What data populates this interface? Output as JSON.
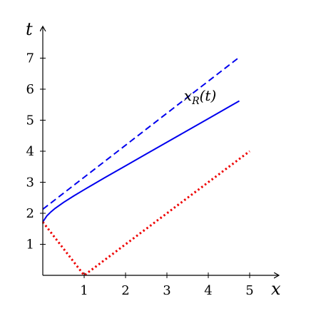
{
  "chart_data": {
    "type": "line",
    "title": "",
    "xlabel": "x",
    "ylabel": "t",
    "xlim": [
      0,
      5.5
    ],
    "ylim": [
      0,
      7.8
    ],
    "grid": false,
    "x_ticks": [
      "1",
      "2",
      "3",
      "4",
      "5"
    ],
    "y_ticks": [
      "1",
      "2",
      "3",
      "4",
      "5",
      "6",
      "7"
    ],
    "annotation": {
      "main": "x",
      "sub": "R",
      "arg": "(t)",
      "at": [
        4.1,
        5.75
      ]
    },
    "series": [
      {
        "style": "solid",
        "color": "#0000ee",
        "x": [
          0,
          0.1,
          0.2,
          0.3,
          0.5,
          0.75,
          1.0,
          1.5,
          2.0,
          2.5,
          3.0,
          3.5,
          4.0,
          4.5,
          4.75
        ],
        "y": [
          1.72,
          1.92,
          2.05,
          2.16,
          2.35,
          2.56,
          2.76,
          3.15,
          3.53,
          3.91,
          4.29,
          4.67,
          5.05,
          5.43,
          5.62
        ]
      },
      {
        "style": "dashed",
        "color": "#0000ee",
        "x": [
          0,
          4.75
        ],
        "y": [
          2.13,
          7.03
        ]
      },
      {
        "style": "dotted",
        "color": "#ee0000",
        "x": [
          0,
          1.0,
          5.0
        ],
        "y": [
          1.72,
          0.0,
          4.0
        ]
      }
    ]
  }
}
